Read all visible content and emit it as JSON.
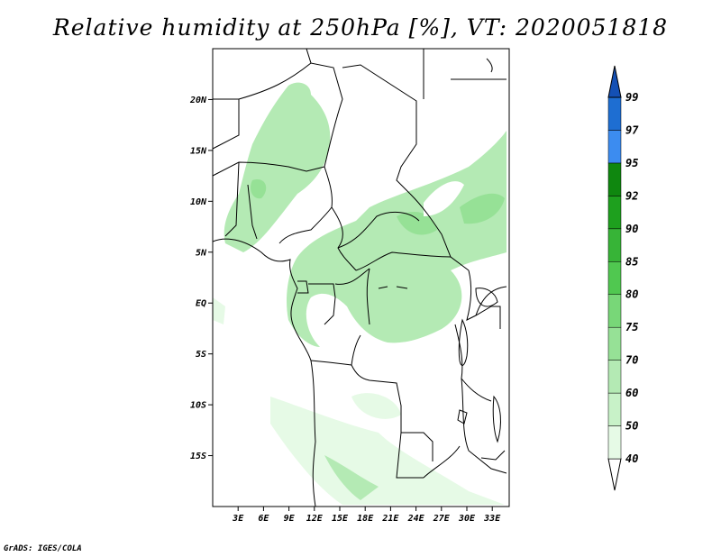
{
  "title": "Relative humidity at 250hPa [%], VT: 2020051818",
  "credit": "GrADS: IGES/COLA",
  "map": {
    "lat_range": [
      -20,
      25
    ],
    "lon_range": [
      0,
      35
    ],
    "y_ticks": [
      {
        "lat": 20,
        "label": "20N"
      },
      {
        "lat": 15,
        "label": "15N"
      },
      {
        "lat": 10,
        "label": "10N"
      },
      {
        "lat": 5,
        "label": "5N"
      },
      {
        "lat": 0,
        "label": "EQ"
      },
      {
        "lat": -5,
        "label": "5S"
      },
      {
        "lat": -10,
        "label": "10S"
      },
      {
        "lat": -15,
        "label": "15S"
      }
    ],
    "x_ticks": [
      {
        "lon": 3,
        "label": "3E"
      },
      {
        "lon": 6,
        "label": "6E"
      },
      {
        "lon": 9,
        "label": "9E"
      },
      {
        "lon": 12,
        "label": "12E"
      },
      {
        "lon": 15,
        "label": "15E"
      },
      {
        "lon": 18,
        "label": "18E"
      },
      {
        "lon": 21,
        "label": "21E"
      },
      {
        "lon": 24,
        "label": "24E"
      },
      {
        "lon": 27,
        "label": "27E"
      },
      {
        "lon": 30,
        "label": "30E"
      },
      {
        "lon": 33,
        "label": "33E"
      }
    ]
  },
  "colorbar": {
    "levels": [
      "40",
      "50",
      "60",
      "70",
      "75",
      "80",
      "85",
      "90",
      "92",
      "95",
      "97",
      "99"
    ],
    "colors": [
      "#e6fae6",
      "#c8f2c8",
      "#b4eab4",
      "#96e196",
      "#78d778",
      "#50c850",
      "#37b437",
      "#1ea01e",
      "#0f870f",
      "#3c8cf0",
      "#1e6ed2",
      "#1450b4"
    ]
  },
  "humidity_regions": {
    "band_color": "#b4eab4",
    "light_color": "#e6fae6",
    "mid_color": "#96e196"
  }
}
